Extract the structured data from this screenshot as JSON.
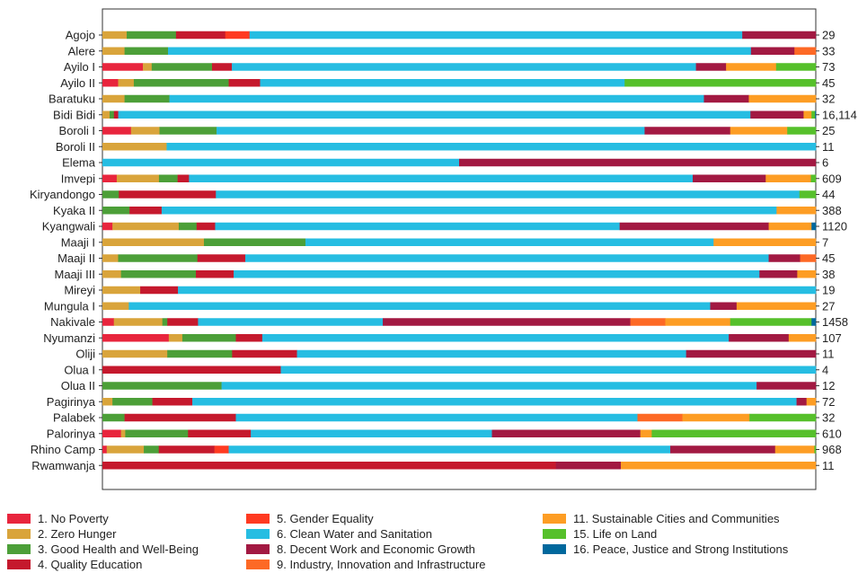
{
  "chart_data": {
    "type": "bar",
    "orientation": "horizontal",
    "stacked": true,
    "normalized": true,
    "xlim": [
      0,
      100
    ],
    "x_unit": "percent",
    "categories": [
      "Agojo",
      "Alere",
      "Ayilo I",
      "Ayilo II",
      "Baratuku",
      "Bidi Bidi",
      "Boroli I",
      "Boroli II",
      "Elema",
      "Imvepi",
      "Kiryandongo",
      "Kyaka II",
      "Kyangwali",
      "Maaji I",
      "Maaji II",
      "Maaji III",
      "Mireyi",
      "Mungula I",
      "Nakivale",
      "Nyumanzi",
      "Oliji",
      "Olua I",
      "Olua II",
      "Pagirinya",
      "Palabek",
      "Palorinya",
      "Rhino Camp",
      "Rwamwanja"
    ],
    "right_labels": [
      "29",
      "33",
      "73",
      "45",
      "32",
      "16,114",
      "25",
      "11",
      "6",
      "609",
      "44",
      "388",
      "1120",
      "7",
      "45",
      "38",
      "19",
      "27",
      "1458",
      "107",
      "11",
      "4",
      "12",
      "72",
      "32",
      "610",
      "968",
      "11"
    ],
    "series": [
      {
        "name": "1. No Poverty",
        "color": "#e8253d",
        "values": [
          0,
          0,
          5.5,
          2.2,
          0,
          0,
          4,
          0,
          0,
          2,
          0,
          0,
          1.4,
          0,
          0,
          0,
          0,
          0,
          1.6,
          9.3,
          0,
          0,
          0,
          0,
          0,
          2.6,
          0.6,
          0
        ]
      },
      {
        "name": "2. Zero Hunger",
        "color": "#d9a43b",
        "values": [
          3.4,
          3.1,
          1.2,
          2.2,
          3.1,
          1,
          4,
          9,
          0,
          5.9,
          0,
          0,
          9.3,
          14.2,
          2.2,
          2.6,
          5.3,
          3.7,
          6.8,
          1.9,
          9.1,
          0,
          0,
          1.4,
          0,
          0.6,
          5.2,
          0
        ]
      },
      {
        "name": "3. Good Health and Well-Being",
        "color": "#4c9f38",
        "values": [
          6.9,
          6.1,
          8.2,
          13.3,
          6.3,
          0.6,
          8,
          0,
          0,
          2.6,
          2.3,
          3.8,
          2.5,
          14.2,
          11.1,
          10.5,
          0,
          0,
          0.7,
          7.5,
          9.1,
          0,
          16.7,
          5.6,
          3.1,
          8.8,
          2.1,
          0
        ]
      },
      {
        "name": "4. Quality Education",
        "color": "#c5192d",
        "values": [
          6.9,
          0,
          2.7,
          4.4,
          0,
          0.6,
          0,
          0,
          0,
          1.6,
          13.6,
          4.5,
          2.6,
          0,
          6.7,
          5.3,
          5.3,
          0,
          4.3,
          3.7,
          9.1,
          25,
          0,
          5.6,
          15.6,
          8.8,
          7.8,
          63.5
        ]
      },
      {
        "name": "5. Gender Equality",
        "color": "#ff3a21",
        "values": [
          3.4,
          0,
          0,
          0,
          0,
          0,
          0,
          0,
          0,
          0,
          0,
          0,
          0,
          0,
          0,
          0,
          0,
          0,
          0,
          0,
          0,
          0,
          0,
          0,
          0,
          0,
          2,
          0
        ]
      },
      {
        "name": "6. Clean Water and Sanitation",
        "color": "#26bde2",
        "values": [
          69,
          81.8,
          63.1,
          51.1,
          75,
          88,
          60,
          91,
          50,
          70.4,
          81.8,
          86.2,
          56.7,
          57.1,
          73.3,
          73.7,
          89.5,
          81.5,
          25.9,
          65.4,
          54.6,
          75,
          75,
          84.7,
          56.3,
          33.8,
          61.9,
          0
        ]
      },
      {
        "name": "8. Decent Work and Economic Growth",
        "color": "#a21942",
        "values": [
          10.3,
          6.1,
          4.1,
          0,
          6.3,
          7.4,
          12,
          0,
          50,
          10.2,
          0,
          0,
          20.9,
          0,
          4.4,
          5.3,
          0,
          3.7,
          34.7,
          8.4,
          18.2,
          0,
          8.3,
          1.4,
          0,
          20.8,
          14.7,
          9.1
        ]
      },
      {
        "name": "9. Industry, Innovation and Infrastructure",
        "color": "#fd6925",
        "values": [
          0,
          3,
          0,
          0,
          0,
          0,
          0,
          0,
          0,
          0,
          0,
          0,
          0,
          0,
          2.2,
          0,
          0,
          0,
          4.9,
          0,
          0,
          0,
          0,
          0,
          6.3,
          0,
          0,
          0
        ]
      },
      {
        "name": "11. Sustainable Cities and Communities",
        "color": "#fd9d24",
        "values": [
          0,
          0,
          6.8,
          0,
          9.4,
          1.1,
          8,
          0,
          0,
          6.3,
          0,
          5.5,
          6,
          14.3,
          0,
          2.6,
          0,
          11.1,
          9.1,
          3.8,
          0,
          0,
          0,
          1.3,
          9.4,
          1.6,
          5.5,
          27.3
        ]
      },
      {
        "name": "15. Life on Land",
        "color": "#56c02b",
        "values": [
          0,
          0,
          5.4,
          26.8,
          0,
          0.5,
          4,
          0,
          0,
          0.7,
          2.3,
          0,
          0,
          0,
          0,
          0,
          0,
          0,
          11.4,
          0,
          0,
          0,
          0,
          0,
          9.3,
          23,
          0.2,
          0
        ]
      },
      {
        "name": "16. Peace, Justice and Strong Institutions",
        "color": "#00689d",
        "values": [
          0,
          0,
          0,
          0,
          0,
          0.1,
          0,
          0,
          0,
          0,
          0,
          0,
          0.6,
          0,
          0,
          0,
          0,
          0,
          0.6,
          0,
          0,
          0,
          0,
          0,
          0,
          0,
          0,
          0
        ]
      }
    ]
  }
}
